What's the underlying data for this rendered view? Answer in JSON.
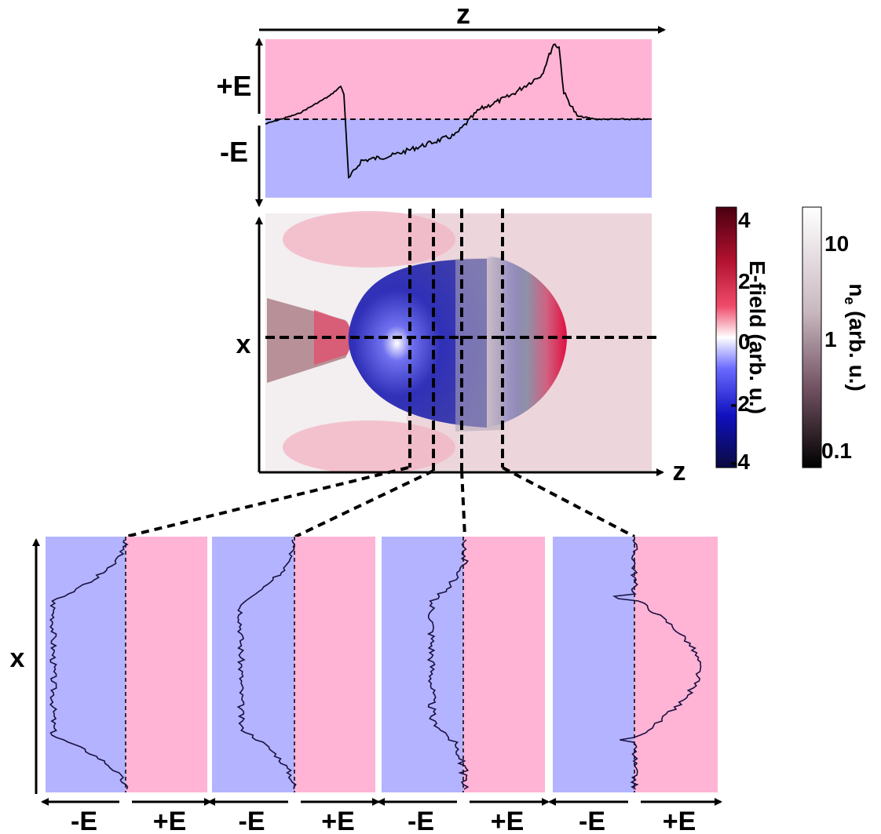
{
  "labels": {
    "z_top": "z",
    "plus_e": "+E",
    "minus_e": "-E",
    "x_main": "x",
    "z_main": "z",
    "x_lower": "x",
    "efield_title": "E-field (arb. u.)",
    "density_title_main": "n",
    "density_title_sub": "e",
    "density_title_rest": " (arb. u.)"
  },
  "efield_colorbar": {
    "ticks": [
      "4",
      "2",
      "0",
      "-2",
      "-4"
    ]
  },
  "density_colorbar": {
    "ticks": [
      "10",
      "1",
      "0.1"
    ]
  },
  "colors": {
    "positive_bg": "#FFB3D5",
    "negative_bg": "#B3B3FF",
    "curve": "#000000",
    "lineout_curve": "#1A1040"
  },
  "lineout_panels": [
    {
      "label_neg": "-E",
      "label_pos": "+E"
    },
    {
      "label_neg": "-E",
      "label_pos": "+E"
    },
    {
      "label_neg": "-E",
      "label_pos": "+E"
    },
    {
      "label_neg": "-E",
      "label_pos": "+E"
    }
  ]
}
